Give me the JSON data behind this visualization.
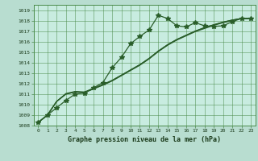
{
  "title": "Graphe pression niveau de la mer (hPa)",
  "bg_color": "#b8ddd0",
  "plot_bg_color": "#c8ece0",
  "grid_color": "#4a8a4a",
  "line_color": "#2a5e2a",
  "xlim": [
    -0.5,
    23.5
  ],
  "ylim": [
    1008,
    1019.5
  ],
  "xticks": [
    0,
    1,
    2,
    3,
    4,
    5,
    6,
    7,
    8,
    9,
    10,
    11,
    12,
    13,
    14,
    15,
    16,
    17,
    18,
    19,
    20,
    21,
    22,
    23
  ],
  "yticks": [
    1008,
    1009,
    1010,
    1011,
    1012,
    1013,
    1014,
    1015,
    1016,
    1017,
    1018,
    1019
  ],
  "main_x": [
    0,
    1,
    2,
    3,
    4,
    5,
    6,
    7,
    8,
    9,
    10,
    11,
    12,
    13,
    14,
    15,
    16,
    17,
    18,
    19,
    20,
    21,
    22,
    23
  ],
  "main_y": [
    1008.3,
    1009.0,
    1009.7,
    1010.4,
    1011.0,
    1011.1,
    1011.6,
    1012.1,
    1013.5,
    1014.5,
    1015.8,
    1016.5,
    1017.1,
    1018.5,
    1018.2,
    1017.5,
    1017.4,
    1017.8,
    1017.5,
    1017.45,
    1017.5,
    1017.9,
    1018.2,
    1018.2
  ],
  "line2_x": [
    0,
    1,
    2,
    3,
    4,
    5,
    6,
    7,
    8,
    9,
    10,
    11,
    12,
    13,
    14,
    15,
    16,
    17,
    18,
    19,
    20,
    21,
    22,
    23
  ],
  "line2_y": [
    1008.3,
    1009.0,
    1010.3,
    1011.0,
    1011.2,
    1011.15,
    1011.5,
    1011.9,
    1012.3,
    1012.8,
    1013.3,
    1013.8,
    1014.4,
    1015.1,
    1015.7,
    1016.2,
    1016.6,
    1017.0,
    1017.35,
    1017.6,
    1017.85,
    1018.05,
    1018.2,
    1018.2
  ],
  "line3_x": [
    0,
    1,
    2,
    3,
    4,
    5,
    6,
    7,
    8,
    9,
    10,
    11,
    12,
    13,
    14,
    15,
    16,
    17,
    18,
    19,
    20,
    21,
    22,
    23
  ],
  "line3_y": [
    1008.3,
    1009.0,
    1010.3,
    1011.0,
    1011.2,
    1011.15,
    1011.5,
    1011.85,
    1012.25,
    1012.75,
    1013.25,
    1013.75,
    1014.35,
    1015.05,
    1015.65,
    1016.15,
    1016.55,
    1016.95,
    1017.25,
    1017.55,
    1017.8,
    1018.0,
    1018.2,
    1018.2
  ],
  "line4_x": [
    0,
    1,
    2,
    3,
    4,
    5,
    6,
    7,
    8,
    9,
    10,
    11,
    12,
    13,
    14,
    15,
    16,
    17,
    18,
    19,
    20,
    21,
    22,
    23
  ],
  "line4_y": [
    1008.3,
    1009.0,
    1010.3,
    1011.05,
    1011.25,
    1011.2,
    1011.55,
    1011.9,
    1012.3,
    1012.8,
    1013.3,
    1013.8,
    1014.4,
    1015.1,
    1015.7,
    1016.2,
    1016.6,
    1017.0,
    1017.3,
    1017.6,
    1017.85,
    1018.05,
    1018.2,
    1018.2
  ]
}
